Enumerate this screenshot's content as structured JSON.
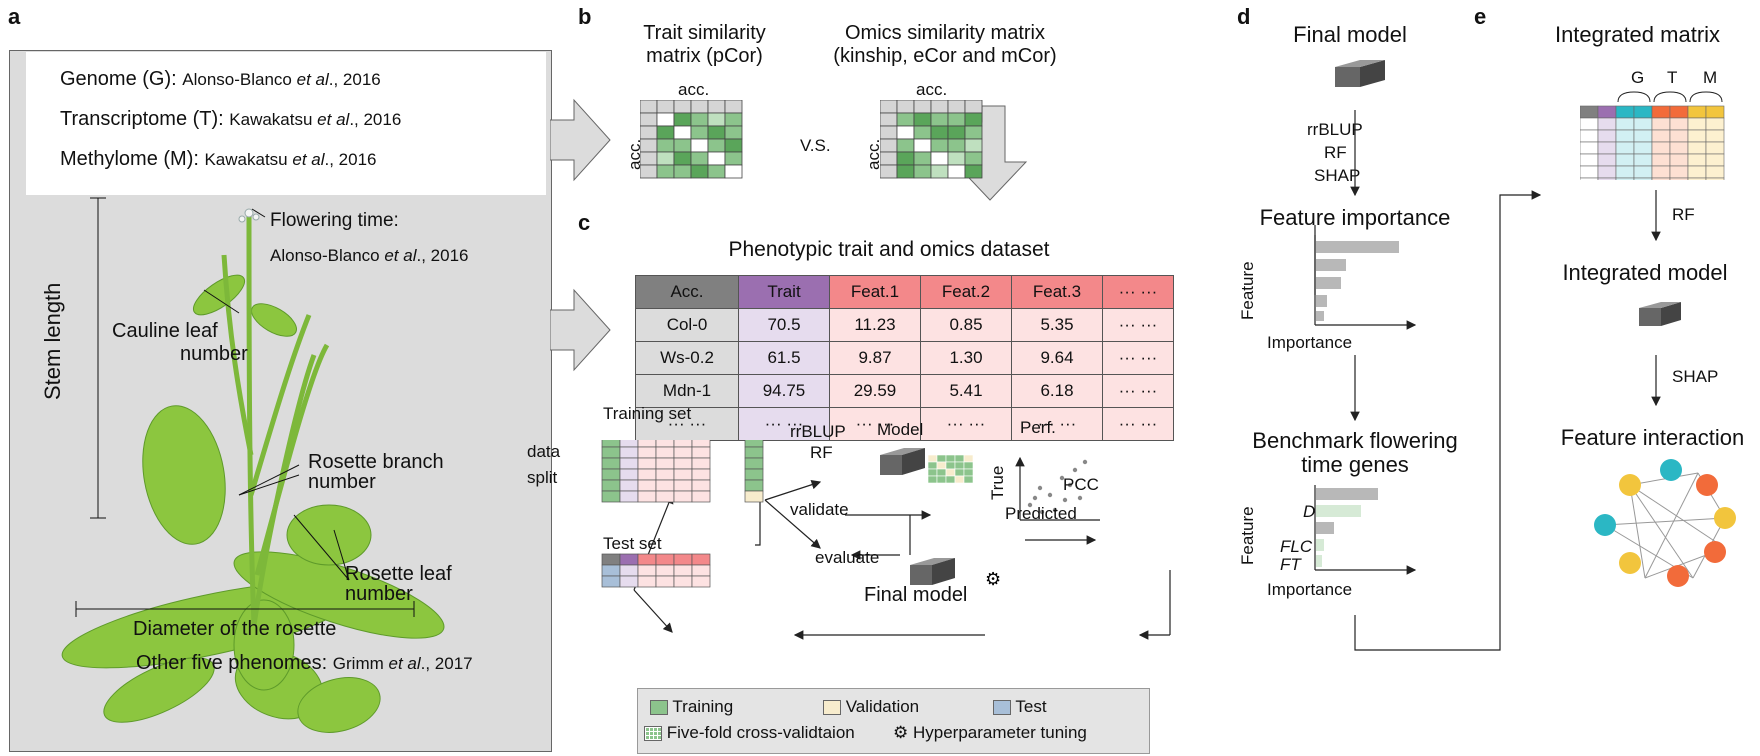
{
  "panels": {
    "a": "a",
    "b": "b",
    "c": "c",
    "d": "d",
    "e": "e"
  },
  "panel_a": {
    "refs": [
      {
        "label": "Genome (G): ",
        "cite_pre": "Alonso-Blanco ",
        "cite_em": "et al",
        "cite_post": "., 2016"
      },
      {
        "label": "Transcriptome (T): ",
        "cite_pre": "Kawakatsu ",
        "cite_em": "et al",
        "cite_post": "., 2016"
      },
      {
        "label": "Methylome (M): ",
        "cite_pre": "Kawakatsu ",
        "cite_em": "et al",
        "cite_post": "., 2016"
      }
    ],
    "flowering_time": "Flowering time:",
    "flowering_cite_pre": "Alonso-Blanco ",
    "flowering_cite_em": "et al",
    "flowering_cite_post": "., 2016",
    "cauline_1": "Cauline leaf",
    "cauline_2": "number",
    "stem_length": "Stem length",
    "rosette_branch_1": "Rosette branch",
    "rosette_branch_2": "number",
    "rosette_leaf_1": "Rosette leaf",
    "rosette_leaf_2": "number",
    "diameter": "Diameter of the rosette",
    "other_label": "Other five phenomes: ",
    "other_cite_pre": "Grimm ",
    "other_cite_em": "et al",
    "other_cite_post": "., 2017"
  },
  "panel_b": {
    "trait_title_1": "Trait similarity",
    "trait_title_2": "matrix (pCor)",
    "omics_title_1": "Omics similarity matrix",
    "omics_title_2": "(kinship, eCor and mCor)",
    "acc": "acc.",
    "vs": "V.S."
  },
  "panel_c": {
    "title": "Phenotypic trait and omics dataset",
    "headers": [
      "Acc.",
      "Trait",
      "Feat.1",
      "Feat.2",
      "Feat.3",
      "··· ···"
    ],
    "rows": [
      [
        "Col-0",
        "70.5",
        "11.23",
        "0.85",
        "5.35",
        "··· ···"
      ],
      [
        "Ws-0.2",
        "61.5",
        "9.87",
        "1.30",
        "9.64",
        "··· ···"
      ],
      [
        "Mdn-1",
        "94.75",
        "29.59",
        "5.41",
        "6.18",
        "··· ···"
      ],
      [
        "··· ···",
        "··· ···",
        "··· ···",
        "··· ···",
        "··· ···",
        "··· ···"
      ]
    ],
    "training_set": "Training set",
    "test_set": "Test set",
    "data_split_1": "data",
    "data_split_2": "split",
    "rrblup": "rrBLUP",
    "rf": "RF",
    "model": "Model",
    "validate": "validate",
    "perf": "Perf.",
    "true_label": "True",
    "predicted": "Predicted",
    "pcc": "PCC",
    "evaluate": "evaluate",
    "final_model": "Final model",
    "legend": {
      "training": "Training",
      "validation": "Validation",
      "test": "Test",
      "five_fold": "Five-fold cross-validtaion",
      "hyper": "Hyperparameter tuning"
    }
  },
  "panel_d": {
    "final_model": "Final model",
    "rrblup": "rrBLUP",
    "rf": "RF",
    "shap": "SHAP",
    "feature_importance": "Feature importance",
    "feature": "Feature",
    "importance": "Importance",
    "bench_1": "Benchmark flowering",
    "bench_2": "time genes",
    "feature2": "Feature",
    "importance2": "Importance",
    "dog1": "DOG1",
    "flc": "FLC",
    "ft": "FT"
  },
  "panel_e": {
    "integrated_matrix": "Integrated matrix",
    "g": "G",
    "t": "T",
    "m": "M",
    "rf": "RF",
    "integrated_model": "Integrated model",
    "shap": "SHAP",
    "feature_interaction": "Feature interaction"
  },
  "colors": {
    "green_dark": "#5aa55a",
    "green_mid": "#8cc48c",
    "green_light": "#bfe0bf",
    "purple": "#9b6fb0",
    "purple_light": "#e6dcee",
    "red": "#f3888a",
    "red_light": "#fde2e2",
    "grey_header": "#808080",
    "cyan": "#2bb7c4",
    "orange": "#f26b3a",
    "yellow": "#f2c53d",
    "validation": "#f7eccd",
    "test": "#a8bfd8"
  }
}
